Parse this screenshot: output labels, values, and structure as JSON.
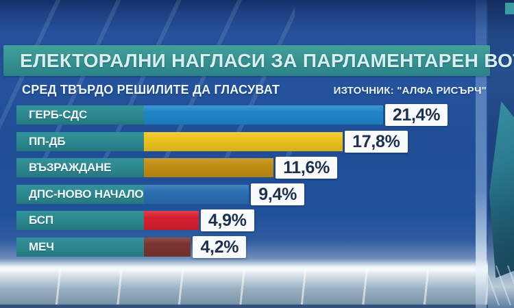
{
  "header": {
    "title": "ЕЛЕКТОРАЛНИ НАГЛАСИ ЗА ПАРЛАМЕНТАРЕН ВОТ",
    "subtitle": "СРЕД ТВЪРДО РЕШИЛИТЕ ДА ГЛАСУВАТ",
    "source": "ИЗТОЧНИК: \"АЛФА РИСЪРЧ\""
  },
  "chart_data": {
    "type": "bar",
    "orientation": "horizontal",
    "title": "ЕЛЕКТОРАЛНИ НАГЛАСИ ЗА ПАРЛАМЕНТАРЕН ВОТ",
    "subtitle": "СРЕД ТВЪРДО РЕШИЛИТЕ ДА ГЛАСУВАТ",
    "source": "ИЗТОЧНИК: \"АЛФА РИСЪРЧ\"",
    "unit": "%",
    "xlim": [
      0,
      25
    ],
    "grid": false,
    "legend": false,
    "categories": [
      "ГЕРБ-СДС",
      "ПП-ДБ",
      "ВЪЗРАЖДАНЕ",
      "ДПС-НОВО НАЧАЛО",
      "БСП",
      "МЕЧ"
    ],
    "values": [
      21.4,
      17.8,
      11.6,
      9.4,
      4.9,
      4.2
    ],
    "value_labels": [
      "21,4%",
      "17,8%",
      "11,6%",
      "9,4%",
      "4,9%",
      "4,2%"
    ],
    "bar_colors": [
      "#1f86c9",
      "#edc41d",
      "#c28f14",
      "#2a70b2",
      "#d71f2e",
      "#7a3431"
    ]
  },
  "colors": {
    "banner_teal": "#359190",
    "label_plate_teal": "#2b858d",
    "value_text": "#1c3050",
    "background_blue": "#1f4e96",
    "value_box_bg": "#f9fbfc"
  }
}
